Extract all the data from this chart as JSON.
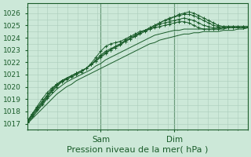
{
  "bg_color": "#cce8d8",
  "grid_color": "#aaccbb",
  "line_color": "#1a5c2a",
  "ylabel_ticks": [
    1017,
    1018,
    1019,
    1020,
    1021,
    1022,
    1023,
    1024,
    1025,
    1026
  ],
  "ylim": [
    1016.5,
    1026.8
  ],
  "xlabel": "Pression niveau de la mer( hPa )",
  "xlabel_fontsize": 8,
  "tick_fontsize": 6.5,
  "day_labels": [
    "Sam",
    "Dim"
  ],
  "day_label_fontsize": 7.5,
  "total_hours": 66,
  "sam_hour": 22,
  "dim_hour": 44,
  "series_marked": [
    [
      1017.2,
      1017.8,
      1018.4,
      1019.0,
      1019.5,
      1019.9,
      1020.2,
      1020.5,
      1020.7,
      1020.9,
      1021.1,
      1021.3,
      1021.5,
      1021.9,
      1022.4,
      1022.9,
      1023.3,
      1023.5,
      1023.6,
      1023.7,
      1023.9,
      1024.1,
      1024.3,
      1024.5,
      1024.6,
      1024.7,
      1024.8,
      1024.9,
      1025.0,
      1025.1,
      1025.2,
      1025.3,
      1025.3,
      1025.2,
      1025.0,
      1024.8,
      1024.7,
      1024.7,
      1024.7,
      1024.7,
      1024.8,
      1024.8,
      1024.8,
      1024.8,
      1024.8,
      1024.8
    ],
    [
      1017.2,
      1017.8,
      1018.3,
      1018.8,
      1019.3,
      1019.8,
      1020.2,
      1020.5,
      1020.7,
      1020.9,
      1021.1,
      1021.3,
      1021.5,
      1021.8,
      1022.2,
      1022.6,
      1022.9,
      1023.1,
      1023.3,
      1023.5,
      1023.7,
      1023.9,
      1024.1,
      1024.3,
      1024.5,
      1024.7,
      1024.9,
      1025.1,
      1025.2,
      1025.3,
      1025.4,
      1025.5,
      1025.6,
      1025.5,
      1025.4,
      1025.2,
      1025.0,
      1024.9,
      1024.8,
      1024.8,
      1024.8,
      1024.8,
      1024.8,
      1024.8,
      1024.8,
      1024.8
    ],
    [
      1017.1,
      1017.7,
      1018.2,
      1018.7,
      1019.2,
      1019.7,
      1020.1,
      1020.4,
      1020.7,
      1020.9,
      1021.1,
      1021.3,
      1021.5,
      1021.8,
      1022.1,
      1022.5,
      1022.8,
      1023.0,
      1023.3,
      1023.5,
      1023.8,
      1024.0,
      1024.2,
      1024.4,
      1024.6,
      1024.8,
      1025.0,
      1025.2,
      1025.4,
      1025.5,
      1025.7,
      1025.8,
      1025.9,
      1025.9,
      1025.8,
      1025.6,
      1025.4,
      1025.2,
      1025.0,
      1024.9,
      1024.9,
      1024.9,
      1024.9,
      1024.9,
      1024.9,
      1024.9
    ],
    [
      1017.1,
      1017.6,
      1018.1,
      1018.6,
      1019.1,
      1019.6,
      1020.0,
      1020.4,
      1020.6,
      1020.8,
      1021.0,
      1021.2,
      1021.5,
      1021.8,
      1022.1,
      1022.4,
      1022.7,
      1023.0,
      1023.2,
      1023.4,
      1023.7,
      1023.9,
      1024.1,
      1024.4,
      1024.6,
      1024.8,
      1025.0,
      1025.2,
      1025.4,
      1025.6,
      1025.7,
      1025.9,
      1026.0,
      1026.1,
      1026.0,
      1025.8,
      1025.6,
      1025.4,
      1025.2,
      1025.0,
      1024.9,
      1024.9,
      1024.9,
      1024.9,
      1024.9,
      1024.9
    ]
  ],
  "series_plain": [
    [
      1017.0,
      1017.5,
      1018.0,
      1018.5,
      1019.0,
      1019.4,
      1019.8,
      1020.1,
      1020.4,
      1020.6,
      1020.8,
      1021.0,
      1021.2,
      1021.4,
      1021.7,
      1021.9,
      1022.2,
      1022.4,
      1022.6,
      1022.8,
      1023.0,
      1023.2,
      1023.4,
      1023.6,
      1023.8,
      1024.0,
      1024.2,
      1024.3,
      1024.4,
      1024.5,
      1024.6,
      1024.6,
      1024.7,
      1024.7,
      1024.7,
      1024.7,
      1024.7,
      1024.7,
      1024.7,
      1024.7,
      1024.7,
      1024.8,
      1024.8,
      1024.8,
      1024.8,
      1024.8
    ],
    [
      1017.0,
      1017.4,
      1017.8,
      1018.2,
      1018.6,
      1019.0,
      1019.4,
      1019.7,
      1020.0,
      1020.2,
      1020.5,
      1020.7,
      1020.9,
      1021.1,
      1021.3,
      1021.5,
      1021.7,
      1021.9,
      1022.1,
      1022.3,
      1022.5,
      1022.7,
      1022.9,
      1023.1,
      1023.3,
      1023.5,
      1023.6,
      1023.8,
      1023.9,
      1024.0,
      1024.1,
      1024.2,
      1024.3,
      1024.3,
      1024.4,
      1024.4,
      1024.5,
      1024.5,
      1024.5,
      1024.5,
      1024.6,
      1024.6,
      1024.6,
      1024.7,
      1024.7,
      1024.8
    ]
  ]
}
